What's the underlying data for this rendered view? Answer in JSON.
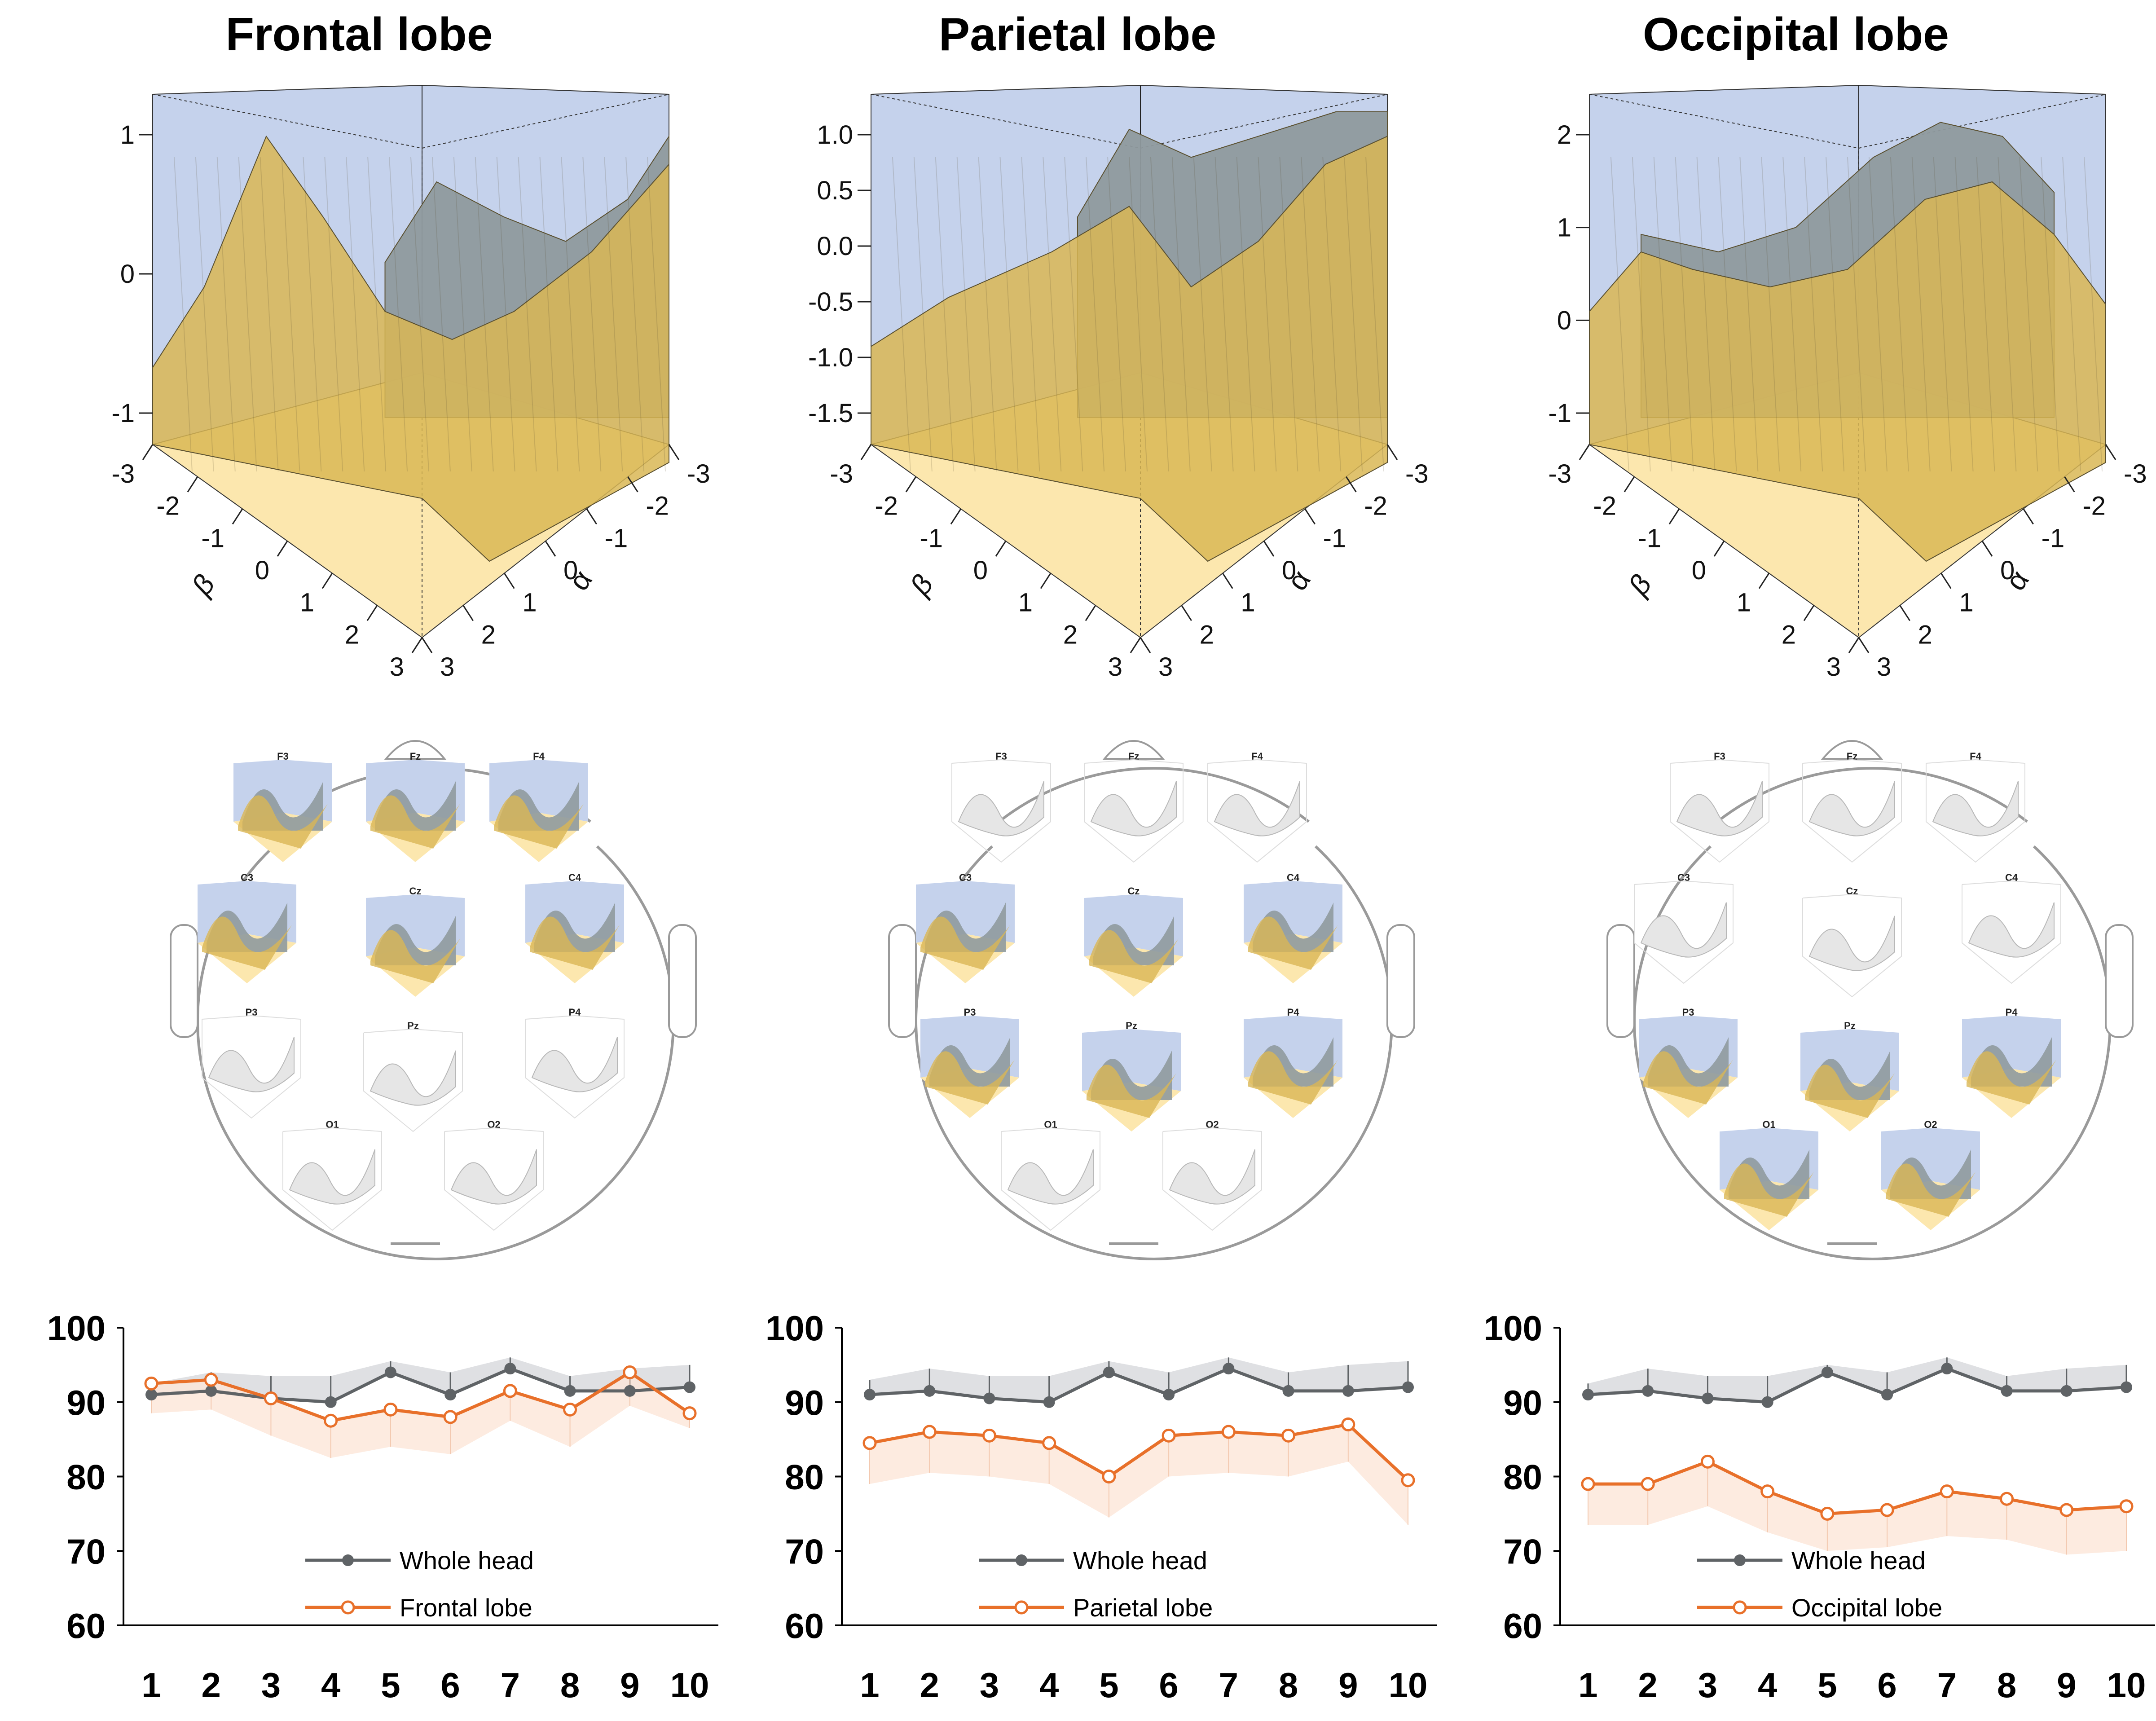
{
  "figure": {
    "colors": {
      "back_wall": "#c5d2ec",
      "floor": "#fce7ae",
      "surface_gold": "#d9b755",
      "surface_gray": "#8f9a9e",
      "mesh_line": "#5a5030",
      "inactive_mesh": "#b8b8b8",
      "whole_head_line": "#5f6366",
      "whole_head_band": "#dcdde0",
      "lobe_line": "#e8702a",
      "lobe_band": "#fde6d8",
      "head_outline": "#9a9a9a"
    },
    "panels": [
      {
        "title": "Frontal lobe",
        "surface": {
          "z_ticks": [
            "1",
            "0",
            "-1"
          ],
          "beta_label": "β",
          "alpha_label": "α",
          "beta_ticks": [
            "-3",
            "-2",
            "-1",
            "0",
            "1",
            "2",
            "3"
          ],
          "alpha_ticks": [
            "-3",
            "-2",
            "-1",
            "0",
            "1",
            "2",
            "3"
          ]
        },
        "head_map": {
          "electrodes": [
            {
              "label": "F3",
              "active": true
            },
            {
              "label": "Fz",
              "active": true
            },
            {
              "label": "F4",
              "active": true
            },
            {
              "label": "C3",
              "active": true
            },
            {
              "label": "Cz",
              "active": true
            },
            {
              "label": "C4",
              "active": true
            },
            {
              "label": "P3",
              "active": false
            },
            {
              "label": "Pz",
              "active": false
            },
            {
              "label": "P4",
              "active": false
            },
            {
              "label": "O1",
              "active": false
            },
            {
              "label": "O2",
              "active": false
            }
          ]
        }
      },
      {
        "title": "Parietal lobe",
        "surface": {
          "z_ticks": [
            "1.0",
            "0.5",
            "0.0",
            "-0.5",
            "-1.0",
            "-1.5"
          ],
          "beta_label": "β",
          "alpha_label": "α",
          "beta_ticks": [
            "-3",
            "-2",
            "-1",
            "0",
            "1",
            "2",
            "3"
          ],
          "alpha_ticks": [
            "-3",
            "-2",
            "-1",
            "0",
            "1",
            "2",
            "3"
          ]
        },
        "head_map": {
          "electrodes": [
            {
              "label": "F3",
              "active": false
            },
            {
              "label": "Fz",
              "active": false
            },
            {
              "label": "F4",
              "active": false
            },
            {
              "label": "C3",
              "active": true
            },
            {
              "label": "Cz",
              "active": true
            },
            {
              "label": "C4",
              "active": true
            },
            {
              "label": "P3",
              "active": true
            },
            {
              "label": "Pz",
              "active": true
            },
            {
              "label": "P4",
              "active": true
            },
            {
              "label": "O1",
              "active": false
            },
            {
              "label": "O2",
              "active": false
            }
          ]
        }
      },
      {
        "title": "Occipital lobe",
        "surface": {
          "z_ticks": [
            "2",
            "1",
            "0",
            "-1"
          ],
          "beta_label": "β",
          "alpha_label": "α",
          "beta_ticks": [
            "-3",
            "-2",
            "-1",
            "0",
            "1",
            "2",
            "3"
          ],
          "alpha_ticks": [
            "-3",
            "-2",
            "-1",
            "0",
            "1",
            "2",
            "3"
          ]
        },
        "head_map": {
          "electrodes": [
            {
              "label": "F3",
              "active": false
            },
            {
              "label": "Fz",
              "active": false
            },
            {
              "label": "F4",
              "active": false
            },
            {
              "label": "C3",
              "active": false
            },
            {
              "label": "Cz",
              "active": false
            },
            {
              "label": "C4",
              "active": false
            },
            {
              "label": "P3",
              "active": true
            },
            {
              "label": "Pz",
              "active": true
            },
            {
              "label": "P4",
              "active": true
            },
            {
              "label": "O1",
              "active": true
            },
            {
              "label": "O2",
              "active": true
            }
          ]
        }
      }
    ]
  },
  "chart_data": [
    {
      "type": "line",
      "title": "Frontal lobe",
      "x": [
        1,
        2,
        3,
        4,
        5,
        6,
        7,
        8,
        9,
        10
      ],
      "xlabel": "",
      "ylabel": "",
      "ylim": [
        60,
        100
      ],
      "yticks": [
        60,
        70,
        80,
        90,
        100
      ],
      "grid": false,
      "legend_position": "bottom-center",
      "series": [
        {
          "name": "Whole head",
          "marker": "filled-circle",
          "values": [
            91,
            91.5,
            90.5,
            90,
            94,
            91,
            94.5,
            91.5,
            91.5,
            92
          ],
          "band_upper": [
            92.5,
            94,
            93.5,
            93.5,
            95.5,
            94,
            96,
            93.5,
            94.5,
            95
          ]
        },
        {
          "name": "Frontal lobe",
          "marker": "open-circle",
          "values": [
            92.5,
            93,
            90.5,
            87.5,
            89,
            88,
            91.5,
            89,
            94,
            88.5
          ],
          "band_lower": [
            88.5,
            89,
            85.5,
            82.5,
            84,
            83,
            87.5,
            84,
            89.5,
            86.5
          ]
        }
      ]
    },
    {
      "type": "line",
      "title": "Parietal lobe",
      "x": [
        1,
        2,
        3,
        4,
        5,
        6,
        7,
        8,
        9,
        10
      ],
      "xlabel": "",
      "ylabel": "",
      "ylim": [
        60,
        100
      ],
      "yticks": [
        60,
        70,
        80,
        90,
        100
      ],
      "grid": false,
      "legend_position": "bottom-center",
      "series": [
        {
          "name": "Whole head",
          "marker": "filled-circle",
          "values": [
            91,
            91.5,
            90.5,
            90,
            94,
            91,
            94.5,
            91.5,
            91.5,
            92
          ],
          "band_upper": [
            93,
            94.5,
            93.5,
            93.5,
            95.5,
            94,
            96,
            94,
            95,
            95.5
          ]
        },
        {
          "name": "Parietal lobe",
          "marker": "open-circle",
          "values": [
            84.5,
            86,
            85.5,
            84.5,
            80,
            85.5,
            86,
            85.5,
            87,
            79.5
          ],
          "band_lower": [
            79,
            80.5,
            80,
            79,
            74.5,
            80,
            80.5,
            80,
            82,
            73.5
          ]
        }
      ]
    },
    {
      "type": "line",
      "title": "Occipital lobe",
      "x": [
        1,
        2,
        3,
        4,
        5,
        6,
        7,
        8,
        9,
        10
      ],
      "xlabel": "",
      "ylabel": "",
      "ylim": [
        60,
        100
      ],
      "yticks": [
        60,
        70,
        80,
        90,
        100
      ],
      "grid": false,
      "legend_position": "bottom-center",
      "series": [
        {
          "name": "Whole head",
          "marker": "filled-circle",
          "values": [
            91,
            91.5,
            90.5,
            90,
            94,
            91,
            94.5,
            91.5,
            91.5,
            92
          ],
          "band_upper": [
            92.5,
            94.5,
            93.5,
            93.5,
            95,
            94,
            96,
            93.5,
            94.5,
            95
          ]
        },
        {
          "name": "Occipital lobe",
          "marker": "open-circle",
          "values": [
            79,
            79,
            82,
            78,
            75,
            75.5,
            78,
            77,
            75.5,
            76
          ],
          "band_lower": [
            73.5,
            73.5,
            76,
            72.5,
            70,
            70.5,
            72,
            71.5,
            69.5,
            70
          ]
        }
      ]
    }
  ]
}
